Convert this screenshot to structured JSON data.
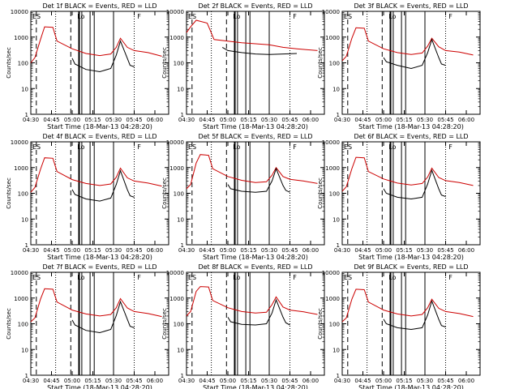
{
  "figure": {
    "ylabel": "Counts/sec",
    "xlabel": "Start Time (18-Mar-13 04:28:20)",
    "colors": {
      "events": "#000000",
      "lld": "#cc0000",
      "axes": "#000000"
    }
  },
  "chart_data": [
    {
      "type": "line",
      "title": "Det 1f BLACK = Events, RED = LLD",
      "xlabel": "Start Time (18-Mar-13 04:28:20)",
      "ylabel": "Counts/sec",
      "yscale": "log",
      "ylim": [
        1,
        10000
      ],
      "xlim": [
        "04:30",
        "06:10"
      ],
      "xticks": [
        "04:30",
        "04:45",
        "05:00",
        "05:15",
        "05:30",
        "05:45",
        "06:00"
      ],
      "yticks": [
        "1",
        "10",
        "100",
        "1000",
        "10000"
      ],
      "series": [
        {
          "name": "LLD",
          "color": "red",
          "x": [
            "04:30",
            "04:33",
            "04:37",
            "04:40",
            "04:46",
            "04:49",
            "05:00",
            "05:10",
            "05:20",
            "05:28",
            "05:32",
            "05:35",
            "05:40",
            "05:45",
            "05:55",
            "06:05"
          ],
          "y": [
            100,
            160,
            800,
            2500,
            2400,
            700,
            350,
            230,
            190,
            220,
            400,
            900,
            400,
            300,
            250,
            180
          ]
        },
        {
          "name": "Events",
          "color": "black",
          "x": [
            "05:00",
            "05:02",
            "05:10",
            "05:20",
            "05:28",
            "05:32",
            "05:35",
            "05:40",
            "05:42",
            "05:45"
          ],
          "y": [
            150,
            90,
            55,
            45,
            60,
            200,
            700,
            150,
            80,
            70
          ]
        }
      ],
      "annotations": [
        "ES",
        "Lo",
        "F"
      ]
    },
    {
      "type": "line",
      "title": "Det 2f BLACK = Events, RED = LLD",
      "xlabel": "Start Time (18-Mar-13 04:28:20)",
      "ylabel": "Counts/sec",
      "yscale": "log",
      "ylim": [
        1,
        10000
      ],
      "xlim": [
        "04:30",
        "06:10"
      ],
      "xticks": [
        "04:30",
        "04:45",
        "05:00",
        "05:15",
        "05:30",
        "05:45",
        "06:00"
      ],
      "yticks": [
        "1",
        "10",
        "100",
        "1000",
        "10000"
      ],
      "series": [
        {
          "name": "LLD",
          "color": "red",
          "x": [
            "04:30",
            "04:33",
            "04:37",
            "04:45",
            "04:50",
            "05:00",
            "05:10",
            "05:20",
            "05:30",
            "05:40",
            "05:50",
            "06:05"
          ],
          "y": [
            1500,
            2500,
            4500,
            3500,
            800,
            700,
            600,
            550,
            500,
            400,
            350,
            300
          ]
        },
        {
          "name": "Events",
          "color": "black",
          "x": [
            "04:56",
            "05:00",
            "05:10",
            "05:20",
            "05:30",
            "05:40",
            "05:50"
          ],
          "y": [
            400,
            300,
            250,
            220,
            210,
            220,
            230
          ]
        }
      ],
      "annotations": [
        "ES",
        "Lo",
        "F"
      ]
    },
    {
      "type": "line",
      "title": "Det 3f BLACK = Events, RED = LLD",
      "xlabel": "Start Time (18-Mar-13 04:28:20)",
      "ylabel": "Counts/sec",
      "yscale": "log",
      "ylim": [
        1,
        10000
      ],
      "xlim": [
        "04:30",
        "06:10"
      ],
      "xticks": [
        "04:30",
        "04:45",
        "05:00",
        "05:15",
        "05:30",
        "05:45",
        "06:00"
      ],
      "yticks": [
        "1",
        "10",
        "100",
        "1000",
        "10000"
      ],
      "series": [
        {
          "name": "LLD",
          "color": "red",
          "x": [
            "04:30",
            "04:33",
            "04:37",
            "04:40",
            "04:46",
            "04:49",
            "05:00",
            "05:10",
            "05:20",
            "05:28",
            "05:32",
            "05:35",
            "05:40",
            "05:45",
            "05:55",
            "06:05"
          ],
          "y": [
            120,
            180,
            900,
            2300,
            2200,
            700,
            350,
            250,
            210,
            240,
            450,
            900,
            420,
            300,
            260,
            200
          ]
        },
        {
          "name": "Events",
          "color": "black",
          "x": [
            "05:00",
            "05:02",
            "05:10",
            "05:20",
            "05:28",
            "05:32",
            "05:35",
            "05:40",
            "05:42",
            "05:45"
          ],
          "y": [
            160,
            110,
            80,
            60,
            80,
            250,
            800,
            160,
            90,
            80
          ]
        }
      ],
      "annotations": [
        "ES",
        "Lo",
        "F"
      ]
    },
    {
      "type": "line",
      "title": "Det 4f BLACK = Events, RED = LLD",
      "xlabel": "Start Time (18-Mar-13 04:28:20)",
      "ylabel": "Counts/sec",
      "yscale": "log",
      "ylim": [
        1,
        10000
      ],
      "xlim": [
        "04:30",
        "06:10"
      ],
      "xticks": [
        "04:30",
        "04:45",
        "05:00",
        "05:15",
        "05:30",
        "05:45",
        "06:00"
      ],
      "yticks": [
        "1",
        "10",
        "100",
        "1000",
        "10000"
      ],
      "series": [
        {
          "name": "LLD",
          "color": "red",
          "x": [
            "04:30",
            "04:33",
            "04:37",
            "04:40",
            "04:46",
            "04:49",
            "05:00",
            "05:10",
            "05:20",
            "05:28",
            "05:32",
            "05:35",
            "05:40",
            "05:45",
            "05:55",
            "06:05"
          ],
          "y": [
            110,
            170,
            850,
            2400,
            2300,
            700,
            340,
            240,
            200,
            230,
            420,
            950,
            400,
            300,
            250,
            190
          ]
        },
        {
          "name": "Events",
          "color": "black",
          "x": [
            "05:00",
            "05:02",
            "05:10",
            "05:20",
            "05:28",
            "05:32",
            "05:35",
            "05:40",
            "05:42",
            "05:45"
          ],
          "y": [
            140,
            90,
            60,
            50,
            65,
            220,
            750,
            140,
            80,
            70
          ]
        }
      ],
      "annotations": [
        "ES",
        "Lo",
        "F"
      ]
    },
    {
      "type": "line",
      "title": "Det 5f BLACK = Events, RED = LLD",
      "xlabel": "Start Time (18-Mar-13 04:28:20)",
      "ylabel": "Counts/sec",
      "yscale": "log",
      "ylim": [
        1,
        10000
      ],
      "xlim": [
        "04:30",
        "06:10"
      ],
      "xticks": [
        "04:30",
        "04:45",
        "05:00",
        "05:15",
        "05:30",
        "05:45",
        "06:00"
      ],
      "yticks": [
        "1",
        "10",
        "100",
        "1000",
        "10000"
      ],
      "series": [
        {
          "name": "LLD",
          "color": "red",
          "x": [
            "04:30",
            "04:33",
            "04:37",
            "04:40",
            "04:46",
            "04:49",
            "05:00",
            "05:10",
            "05:20",
            "05:28",
            "05:32",
            "05:35",
            "05:40",
            "05:45",
            "05:55",
            "06:05"
          ],
          "y": [
            150,
            220,
            1500,
            3200,
            3000,
            900,
            450,
            320,
            260,
            280,
            500,
            1000,
            450,
            350,
            300,
            240
          ]
        },
        {
          "name": "Events",
          "color": "black",
          "x": [
            "05:00",
            "05:02",
            "05:10",
            "05:20",
            "05:28",
            "05:32",
            "05:35",
            "05:40",
            "05:42",
            "05:45"
          ],
          "y": [
            220,
            150,
            120,
            110,
            120,
            300,
            900,
            200,
            130,
            110
          ]
        }
      ],
      "annotations": [
        "ES",
        "Lo",
        "F"
      ]
    },
    {
      "type": "line",
      "title": "Det 6f BLACK = Events, RED = LLD",
      "xlabel": "Start Time (18-Mar-13 04:28:20)",
      "ylabel": "Counts/sec",
      "yscale": "log",
      "ylim": [
        1,
        10000
      ],
      "xlim": [
        "04:30",
        "06:10"
      ],
      "xticks": [
        "04:30",
        "04:45",
        "05:00",
        "05:15",
        "05:30",
        "05:45",
        "06:00"
      ],
      "yticks": [
        "1",
        "10",
        "100",
        "1000",
        "10000"
      ],
      "series": [
        {
          "name": "LLD",
          "color": "red",
          "x": [
            "04:30",
            "04:33",
            "04:37",
            "04:40",
            "04:46",
            "04:49",
            "05:00",
            "05:10",
            "05:20",
            "05:28",
            "05:32",
            "05:35",
            "05:40",
            "05:45",
            "05:55",
            "06:05"
          ],
          "y": [
            120,
            180,
            900,
            2500,
            2400,
            700,
            360,
            250,
            210,
            240,
            430,
            950,
            410,
            310,
            260,
            200
          ]
        },
        {
          "name": "Events",
          "color": "black",
          "x": [
            "05:00",
            "05:02",
            "05:10",
            "05:20",
            "05:28",
            "05:32",
            "05:35",
            "05:40",
            "05:42",
            "05:45"
          ],
          "y": [
            150,
            100,
            70,
            60,
            70,
            230,
            780,
            150,
            85,
            75
          ]
        }
      ],
      "annotations": [
        "ES",
        "Lo",
        "F"
      ]
    },
    {
      "type": "line",
      "title": "Det 7f BLACK = Events, RED = LLD",
      "xlabel": "Start Time (18-Mar-13 04:28:20)",
      "ylabel": "Counts/sec",
      "yscale": "log",
      "ylim": [
        1,
        10000
      ],
      "xlim": [
        "04:30",
        "06:10"
      ],
      "xticks": [
        "04:30",
        "04:45",
        "05:00",
        "05:15",
        "05:30",
        "05:45",
        "06:00"
      ],
      "yticks": [
        "1",
        "10",
        "100",
        "1000",
        "10000"
      ],
      "series": [
        {
          "name": "LLD",
          "color": "red",
          "x": [
            "04:30",
            "04:33",
            "04:37",
            "04:40",
            "04:46",
            "04:49",
            "05:00",
            "05:10",
            "05:20",
            "05:28",
            "05:32",
            "05:35",
            "05:40",
            "05:45",
            "05:55",
            "06:05"
          ],
          "y": [
            120,
            170,
            900,
            2300,
            2200,
            700,
            340,
            240,
            200,
            230,
            420,
            950,
            410,
            300,
            250,
            190
          ]
        },
        {
          "name": "Events",
          "color": "black",
          "x": [
            "05:00",
            "05:02",
            "05:10",
            "05:20",
            "05:28",
            "05:32",
            "05:35",
            "05:40",
            "05:42",
            "05:45"
          ],
          "y": [
            140,
            90,
            55,
            45,
            60,
            210,
            720,
            150,
            80,
            70
          ]
        }
      ],
      "annotations": [
        "ES",
        "Lo",
        "F"
      ]
    },
    {
      "type": "line",
      "title": "Det 8f BLACK = Events, RED = LLD",
      "xlabel": "Start Time (18-Mar-13 04:28:20)",
      "ylabel": "Counts/sec",
      "yscale": "log",
      "ylim": [
        1,
        10000
      ],
      "xlim": [
        "04:30",
        "06:10"
      ],
      "xticks": [
        "04:30",
        "04:45",
        "05:00",
        "05:15",
        "05:30",
        "05:45",
        "06:00"
      ],
      "yticks": [
        "1",
        "10",
        "100",
        "1000",
        "10000"
      ],
      "series": [
        {
          "name": "LLD",
          "color": "red",
          "x": [
            "04:30",
            "04:33",
            "04:37",
            "04:40",
            "04:46",
            "04:49",
            "05:00",
            "05:10",
            "05:20",
            "05:28",
            "05:32",
            "05:35",
            "05:40",
            "05:45",
            "05:55",
            "06:05"
          ],
          "y": [
            200,
            300,
            1800,
            2800,
            2700,
            800,
            420,
            300,
            260,
            280,
            550,
            1100,
            450,
            340,
            290,
            230
          ]
        },
        {
          "name": "Events",
          "color": "black",
          "x": [
            "05:00",
            "05:02",
            "05:10",
            "05:20",
            "05:28",
            "05:32",
            "05:35",
            "05:40",
            "05:42",
            "05:45"
          ],
          "y": [
            180,
            120,
            95,
            90,
            100,
            260,
            850,
            180,
            110,
            90
          ]
        }
      ],
      "annotations": [
        "ES",
        "Lo",
        "F"
      ]
    },
    {
      "type": "line",
      "title": "Det 9f BLACK = Events, RED = LLD",
      "xlabel": "Start Time (18-Mar-13 04:28:20)",
      "ylabel": "Counts/sec",
      "yscale": "log",
      "ylim": [
        1,
        10000
      ],
      "xlim": [
        "04:30",
        "06:10"
      ],
      "xticks": [
        "04:30",
        "04:45",
        "05:00",
        "05:15",
        "05:30",
        "05:45",
        "06:00"
      ],
      "yticks": [
        "1",
        "10",
        "100",
        "1000",
        "10000"
      ],
      "series": [
        {
          "name": "LLD",
          "color": "red",
          "x": [
            "04:30",
            "04:33",
            "04:37",
            "04:40",
            "04:46",
            "04:49",
            "05:00",
            "05:10",
            "05:20",
            "05:28",
            "05:32",
            "05:35",
            "05:40",
            "05:45",
            "05:55",
            "06:05"
          ],
          "y": [
            120,
            170,
            900,
            2200,
            2100,
            700,
            340,
            240,
            200,
            230,
            420,
            900,
            400,
            300,
            250,
            190
          ]
        },
        {
          "name": "Events",
          "color": "black",
          "x": [
            "05:00",
            "05:02",
            "05:10",
            "05:20",
            "05:28",
            "05:32",
            "05:35",
            "05:40",
            "05:42",
            "05:45"
          ],
          "y": [
            150,
            100,
            70,
            60,
            70,
            220,
            760,
            150,
            85,
            75
          ]
        }
      ],
      "annotations": [
        "ES",
        "Lo",
        "F"
      ]
    }
  ]
}
